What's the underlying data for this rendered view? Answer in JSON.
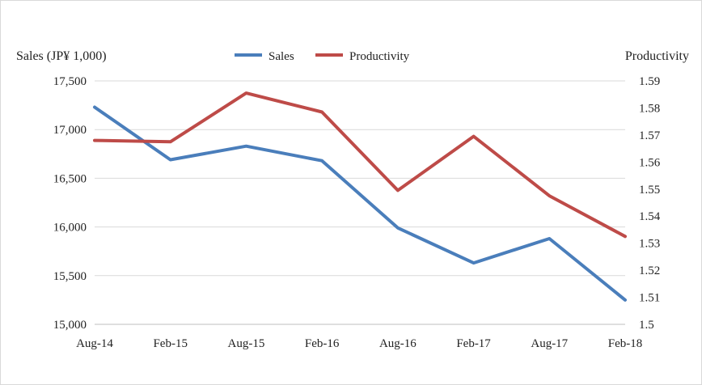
{
  "chart_data": {
    "type": "line",
    "title": "",
    "categories": [
      "Aug-14",
      "Feb-15",
      "Aug-15",
      "Feb-16",
      "Aug-16",
      "Feb-17",
      "Aug-17",
      "Feb-18"
    ],
    "series": [
      {
        "name": "Sales",
        "axis": "left",
        "color": "#4a7ebb",
        "values": [
          17230,
          16690,
          16830,
          16680,
          15990,
          15630,
          15880,
          15250
        ]
      },
      {
        "name": "Productivity",
        "axis": "right",
        "color": "#be4b48",
        "values": [
          1.568,
          1.5675,
          1.5855,
          1.5785,
          1.5495,
          1.5695,
          1.5475,
          1.5325
        ]
      }
    ],
    "y_left": {
      "label": "Sales (JP¥ 1,000)",
      "range": [
        15000,
        17500
      ],
      "ticks": [
        15000,
        15500,
        16000,
        16500,
        17000,
        17500
      ],
      "tick_labels": [
        "15,000",
        "15,500",
        "16,000",
        "16,500",
        "17,000",
        "17,500"
      ]
    },
    "y_right": {
      "label": "Productivity",
      "range": [
        1.5,
        1.59
      ],
      "ticks": [
        1.5,
        1.51,
        1.52,
        1.53,
        1.54,
        1.55,
        1.56,
        1.57,
        1.58,
        1.59
      ],
      "tick_labels": [
        "1.5",
        "1.51",
        "1.52",
        "1.53",
        "1.54",
        "1.55",
        "1.56",
        "1.57",
        "1.58",
        "1.59"
      ]
    },
    "grid": true,
    "legend_position": "top-center"
  }
}
